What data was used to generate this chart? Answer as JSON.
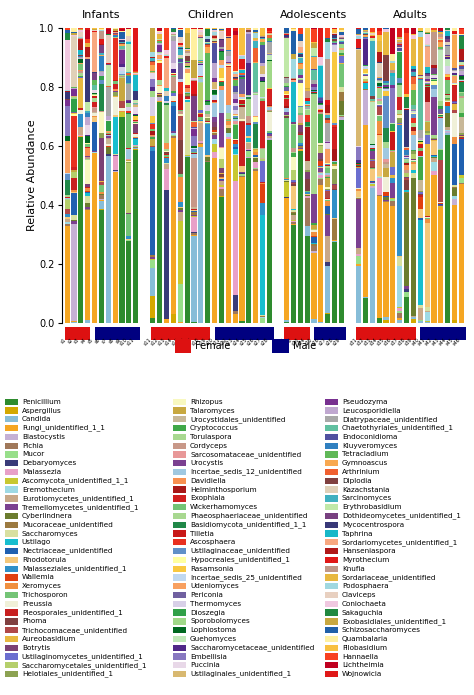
{
  "groups": [
    "Infants",
    "Children",
    "Adolescents",
    "Adults"
  ],
  "n_bars": [
    11,
    18,
    9,
    16
  ],
  "female_bars": [
    4,
    9,
    4,
    9
  ],
  "male_bars": [
    7,
    9,
    5,
    7
  ],
  "ylim": [
    0,
    1
  ],
  "yticks": [
    0.0,
    0.2,
    0.4,
    0.6,
    0.8,
    1.0
  ],
  "ylabel": "Relative Abundance",
  "legend_entries_col1": [
    [
      "Penicillium",
      "#2e8b2e"
    ],
    [
      "Aspergillus",
      "#d4a800"
    ],
    [
      "Candida",
      "#87bdd8"
    ],
    [
      "Fungi_unidentified_1_1",
      "#f5a623"
    ],
    [
      "Blastocystis",
      "#c5b0d5"
    ],
    [
      "Pichia",
      "#a0785a"
    ],
    [
      "Mucor",
      "#98df8a"
    ],
    [
      "Debaryomyces",
      "#393b79"
    ],
    [
      "Malassezia",
      "#e8a0c8"
    ],
    [
      "Ascomycota_unidentified_1_1",
      "#c8c830"
    ],
    [
      "Eremothecium",
      "#9edae5"
    ],
    [
      "Eurotiomycetes_unidentified_1",
      "#c8a888"
    ],
    [
      "Tremellomycetes_unidentified_1",
      "#7b4090"
    ],
    [
      "Cyberlindnera",
      "#6b7c2e"
    ],
    [
      "Mucoraceae_unidentified",
      "#9c7a40"
    ],
    [
      "Saccharomyces",
      "#d8e0a0"
    ],
    [
      "Ustilago",
      "#17becf"
    ],
    [
      "Nectriaceae_unidentified",
      "#2060b0"
    ],
    [
      "Rhodotorula",
      "#f5c87a"
    ],
    [
      "Malasseziales_unidentified_1",
      "#3090c8"
    ],
    [
      "Wallemia",
      "#e04010"
    ],
    [
      "Xeromyces",
      "#f09040"
    ],
    [
      "Trichosporon",
      "#74c476"
    ],
    [
      "Preussia",
      "#f0f0d8"
    ],
    [
      "Pleosporales_unidentified_1",
      "#c82020"
    ],
    [
      "Phoma",
      "#804040"
    ],
    [
      "Trichocomaceae_unidentified",
      "#b04848"
    ],
    [
      "Aureobasidium",
      "#e8b840"
    ],
    [
      "Botrytis",
      "#7b4173"
    ],
    [
      "Ustilaginomycetes_unidentified_1",
      "#6b6ecf"
    ],
    [
      "Saccharomycetales_unidentified_1",
      "#b5cf6b"
    ],
    [
      "Helotiales_unidentified_1",
      "#8ca252"
    ]
  ],
  "legend_entries_col2": [
    [
      "Rhizopus",
      "#f8f8c0"
    ],
    [
      "Talaromyces",
      "#c8a840"
    ],
    [
      "Urocystidales_unidentified",
      "#c8b898"
    ],
    [
      "Cryptococcus",
      "#40a848"
    ],
    [
      "Torulaspora",
      "#a8d890"
    ],
    [
      "Cordyceps",
      "#c89888"
    ],
    [
      "Sarcosomataceae_unidentified",
      "#e89898"
    ],
    [
      "Urocystis",
      "#7b4090"
    ],
    [
      "Incertae_sedis_12_unidentified",
      "#a0c8e0"
    ],
    [
      "Davidiella",
      "#f89050"
    ],
    [
      "Helminthosporium",
      "#a81818"
    ],
    [
      "Exophiala",
      "#d02020"
    ],
    [
      "Wickerhamomyces",
      "#74c476"
    ],
    [
      "Phaeosphaeriaceae_unidentified",
      "#a8d890"
    ],
    [
      "Basidiomycota_unidentified_1_1",
      "#208848"
    ],
    [
      "Tilletia",
      "#c81818"
    ],
    [
      "Ascosphaera",
      "#e83020"
    ],
    [
      "Ustilaginaceae_unidentified",
      "#6090c8"
    ],
    [
      "Hypocreales_unidentified_1",
      "#ffffa0"
    ],
    [
      "Rasamsonia",
      "#f8c840"
    ],
    [
      "Incertae_sedis_25_unidentified",
      "#c0d8f0"
    ],
    [
      "Udeniomyces",
      "#f8a060"
    ],
    [
      "Periconia",
      "#7060a0"
    ],
    [
      "Thermomyces",
      "#d8d0e8"
    ],
    [
      "Dioszegia",
      "#30a048"
    ],
    [
      "Sporobolomyces",
      "#a0d888"
    ],
    [
      "Lophiostoma",
      "#006820"
    ],
    [
      "Guehomyces",
      "#c0e8b8"
    ],
    [
      "Saccharomycetaceae_unidentified",
      "#502888"
    ],
    [
      "Embellisia",
      "#8878c0"
    ],
    [
      "Puccinia",
      "#e8d8e8"
    ],
    [
      "Ustilaginales_unidentified_1",
      "#d8b870"
    ]
  ],
  "legend_entries_col3": [
    [
      "Pseudozyma",
      "#783090"
    ],
    [
      "Leucosporidiella",
      "#c0a8d0"
    ],
    [
      "Diatrypaceae_unidentified",
      "#a8a8a8"
    ],
    [
      "Chaetothyriales_unidentified_1",
      "#60c0a0"
    ],
    [
      "Endoconidioma",
      "#5050a0"
    ],
    [
      "Kluyveromyces",
      "#3080c0"
    ],
    [
      "Tetracladium",
      "#60b858"
    ],
    [
      "Gymnoascus",
      "#f8a850"
    ],
    [
      "Arthrinium",
      "#f06030"
    ],
    [
      "Diplodia",
      "#804040"
    ],
    [
      "Kazachstania",
      "#e0d0b8"
    ],
    [
      "Sarcinomyces",
      "#40b0c0"
    ],
    [
      "Erythrobasidium",
      "#c0e8a8"
    ],
    [
      "Dothideomycetes_unidentified_1",
      "#784080"
    ],
    [
      "Mycocentrospora",
      "#383878"
    ],
    [
      "Taphrina",
      "#18b8c8"
    ],
    [
      "Sordariomycetes_unidentified_1",
      "#f8a880"
    ],
    [
      "Hanseniaspora",
      "#b01818"
    ],
    [
      "Myrothecium",
      "#e01818"
    ],
    [
      "Knufia",
      "#c09888"
    ],
    [
      "Sordariaceae_unidentified",
      "#e8b840"
    ],
    [
      "Podosphaera",
      "#a0d8e0"
    ],
    [
      "Claviceps",
      "#e8d0c0"
    ],
    [
      "Coniochaeta",
      "#f0c8e0"
    ],
    [
      "Sakaguchia",
      "#208840"
    ],
    [
      "Exobasidiales_unidentified_1",
      "#c8a840"
    ],
    [
      "Schizosaccharomyces",
      "#2060a8"
    ],
    [
      "Quambalaria",
      "#fff0a0"
    ],
    [
      "Filobasidium",
      "#f8c040"
    ],
    [
      "Hannaella",
      "#f84020"
    ],
    [
      "Lichtheimia",
      "#c00020"
    ],
    [
      "Wojnowicia",
      "#e01818"
    ]
  ],
  "bar_width": 0.75,
  "taxa_colors": [
    "#2e8b2e",
    "#d4a800",
    "#87bdd8",
    "#f5a623",
    "#c5b0d5",
    "#a0785a",
    "#98df8a",
    "#393b79",
    "#e8a0c8",
    "#c8c830",
    "#9edae5",
    "#c8a888",
    "#7b4090",
    "#6b7c2e",
    "#9c7a40",
    "#d8e0a0",
    "#17becf",
    "#2060b0",
    "#f5c87a",
    "#3090c8",
    "#e04010",
    "#f09040",
    "#74c476",
    "#f0f0d8",
    "#c82020",
    "#804040",
    "#b04848",
    "#e8b840",
    "#7b4173",
    "#6b6ecf",
    "#b5cf6b",
    "#8ca252",
    "#f8f8c0",
    "#c8a840",
    "#c8b898",
    "#40a848",
    "#a8d890",
    "#c89888",
    "#e89898",
    "#7b4090",
    "#a0c8e0",
    "#f89050",
    "#a81818",
    "#d02020",
    "#74c476",
    "#a8d890",
    "#208848",
    "#c81818",
    "#e83020",
    "#6090c8",
    "#ffffa0",
    "#f8c840",
    "#c0d8f0",
    "#f8a060",
    "#7060a0",
    "#d8d0e8",
    "#30a048",
    "#a0d888",
    "#006820",
    "#c0e8b8",
    "#502888",
    "#8878c0",
    "#e8d8e8",
    "#d8b870",
    "#783090",
    "#c0a8d0",
    "#a8a8a8",
    "#60c0a0",
    "#5050a0",
    "#3080c0",
    "#60b858",
    "#f8a850",
    "#f06030",
    "#804040",
    "#e0d0b8",
    "#40b0c0",
    "#c0e8a8",
    "#784080",
    "#383878",
    "#18b8c8",
    "#f8a880",
    "#b01818",
    "#e01818",
    "#c09888",
    "#e8b840",
    "#a0d8e0",
    "#e8d0c0",
    "#f0c8e0",
    "#208840",
    "#c8a840",
    "#2060a8",
    "#fff0a0",
    "#f8c040",
    "#f84020",
    "#c00020",
    "#e01818"
  ]
}
